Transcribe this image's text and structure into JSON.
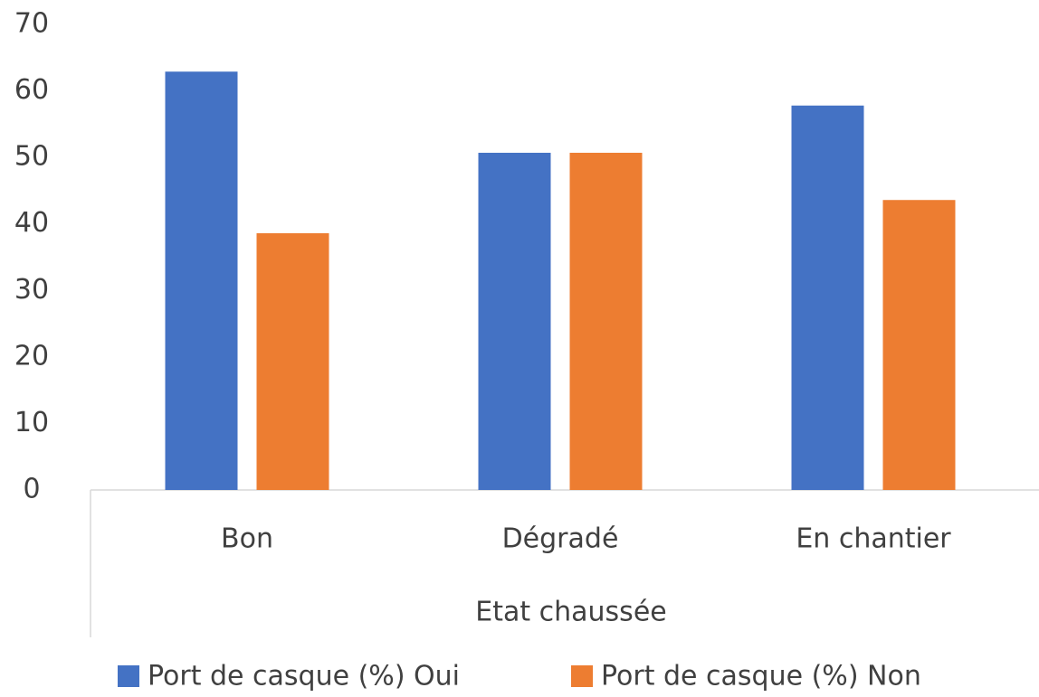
{
  "chart_data": {
    "type": "bar",
    "x_label": "Etat chaussée",
    "categories": [
      "Bon",
      "Dégradé",
      "En chantier"
    ],
    "series": [
      {
        "name": "Port de casque (%) Oui",
        "color": "#4472c4",
        "values": [
          62.9,
          50.7,
          57.8
        ]
      },
      {
        "name": "Port de casque (%) Non",
        "color": "#ed7d31",
        "values": [
          38.6,
          50.7,
          43.6
        ]
      }
    ],
    "ylim": [
      0,
      70
    ],
    "yticks": [
      0,
      10,
      20,
      30,
      40,
      50,
      60,
      70
    ],
    "grid": false,
    "legend": "bottom"
  }
}
